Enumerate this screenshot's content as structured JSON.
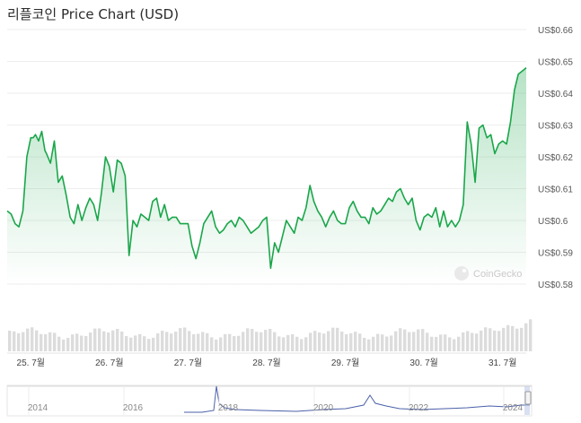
{
  "title": "리플코인 Price Chart (USD)",
  "watermark": "CoinGecko",
  "colors": {
    "line": "#1aa64a",
    "volume": "#dcdcdc",
    "navigator_line": "#4a5fa8"
  },
  "chart_data": {
    "type": "area",
    "title": "리플코인 Price Chart (USD)",
    "y_ticks": [
      "US$0.58",
      "US$0.59",
      "US$0.6",
      "US$0.61",
      "US$0.62",
      "US$0.63",
      "US$0.64",
      "US$0.65",
      "US$0.66"
    ],
    "y_tick_values": [
      0.58,
      0.59,
      0.6,
      0.61,
      0.62,
      0.63,
      0.64,
      0.65,
      0.66
    ],
    "ylim": [
      0.58,
      0.66
    ],
    "x_ticks": [
      "25. 7월",
      "26. 7월",
      "27. 7월",
      "28. 7월",
      "29. 7월",
      "30. 7월",
      "31. 7월"
    ],
    "x_tick_values": [
      0,
      1,
      2,
      3,
      4,
      5,
      6
    ],
    "xlim": [
      -0.3,
      6.3
    ],
    "grid": true,
    "series": [
      {
        "x": [
          -0.3,
          -0.25,
          -0.2,
          -0.15,
          -0.1,
          -0.05,
          0.0,
          0.03,
          0.06,
          0.1,
          0.14,
          0.18,
          0.2,
          0.25,
          0.3,
          0.35,
          0.4,
          0.45,
          0.5,
          0.55,
          0.6,
          0.65,
          0.7,
          0.75,
          0.8,
          0.85,
          0.9,
          0.95,
          1.0,
          1.05,
          1.1,
          1.15,
          1.2,
          1.25,
          1.3,
          1.35,
          1.4,
          1.45,
          1.5,
          1.55,
          1.6,
          1.65,
          1.7,
          1.75,
          1.8,
          1.85,
          1.9,
          2.0,
          2.05,
          2.1,
          2.15,
          2.2,
          2.25,
          2.3,
          2.35,
          2.4,
          2.45,
          2.5,
          2.55,
          2.6,
          2.65,
          2.7,
          2.75,
          2.8,
          2.9,
          2.95,
          3.0,
          3.05,
          3.1,
          3.15,
          3.2,
          3.25,
          3.3,
          3.35,
          3.4,
          3.45,
          3.5,
          3.55,
          3.6,
          3.65,
          3.7,
          3.75,
          3.8,
          3.85,
          3.9,
          3.95,
          4.0,
          4.05,
          4.1,
          4.15,
          4.2,
          4.25,
          4.3,
          4.35,
          4.4,
          4.45,
          4.5,
          4.55,
          4.6,
          4.65,
          4.7,
          4.75,
          4.8,
          4.85,
          4.9,
          4.95,
          5.0,
          5.05,
          5.1,
          5.15,
          5.2,
          5.25,
          5.3,
          5.35,
          5.4,
          5.45,
          5.5,
          5.55,
          5.6,
          5.65,
          5.7,
          5.75,
          5.8,
          5.85,
          5.9,
          5.95,
          6.0,
          6.05,
          6.1,
          6.15,
          6.2,
          6.25,
          6.3
        ],
        "values": [
          0.603,
          0.602,
          0.599,
          0.598,
          0.603,
          0.62,
          0.626,
          0.626,
          0.627,
          0.625,
          0.628,
          0.622,
          0.621,
          0.618,
          0.625,
          0.612,
          0.614,
          0.608,
          0.601,
          0.599,
          0.605,
          0.6,
          0.604,
          0.607,
          0.605,
          0.6,
          0.609,
          0.62,
          0.617,
          0.609,
          0.619,
          0.618,
          0.614,
          0.589,
          0.6,
          0.598,
          0.602,
          0.601,
          0.6,
          0.606,
          0.607,
          0.601,
          0.605,
          0.6,
          0.601,
          0.601,
          0.599,
          0.599,
          0.592,
          0.588,
          0.593,
          0.599,
          0.601,
          0.603,
          0.598,
          0.596,
          0.597,
          0.599,
          0.6,
          0.598,
          0.601,
          0.6,
          0.598,
          0.596,
          0.598,
          0.6,
          0.601,
          0.585,
          0.593,
          0.59,
          0.595,
          0.6,
          0.598,
          0.596,
          0.601,
          0.6,
          0.604,
          0.611,
          0.606,
          0.603,
          0.601,
          0.598,
          0.601,
          0.603,
          0.6,
          0.599,
          0.599,
          0.604,
          0.606,
          0.603,
          0.601,
          0.601,
          0.599,
          0.604,
          0.602,
          0.603,
          0.605,
          0.607,
          0.606,
          0.609,
          0.61,
          0.607,
          0.605,
          0.607,
          0.6,
          0.597,
          0.601,
          0.602,
          0.601,
          0.604,
          0.598,
          0.603,
          0.598,
          0.6,
          0.598,
          0.6,
          0.605,
          0.631,
          0.624,
          0.612,
          0.629,
          0.63,
          0.626,
          0.627,
          0.621,
          0.624,
          0.625,
          0.624,
          0.631,
          0.641,
          0.646,
          0.647,
          0.648
        ]
      }
    ],
    "navigator": {
      "x_ticks": [
        "2014",
        "2016",
        "2018",
        "2020",
        "2022",
        "2024"
      ]
    }
  }
}
